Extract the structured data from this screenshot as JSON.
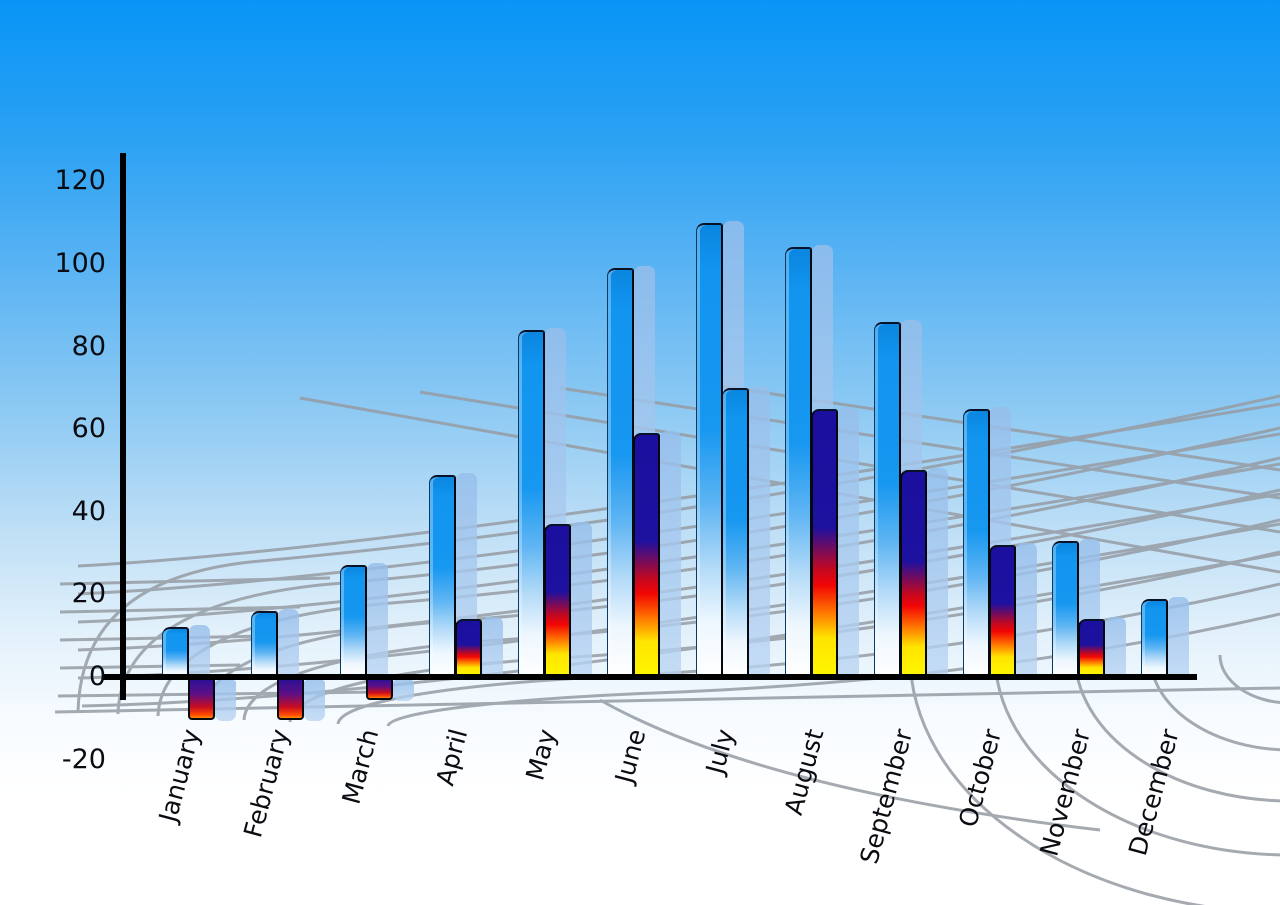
{
  "chart_data": {
    "type": "bar",
    "title": "",
    "subtitle": "",
    "legend": "none",
    "grid": "perspective-curved-decorative",
    "categories": [
      "January",
      "February",
      "March",
      "April",
      "May",
      "June",
      "July",
      "August",
      "September",
      "October",
      "November",
      "December"
    ],
    "series": [
      {
        "name": "series-1-blue",
        "values": [
          12,
          16,
          27,
          49,
          84,
          99,
          110,
          104,
          86,
          65,
          33,
          19
        ]
      },
      {
        "name": "series-2-rainbow",
        "values": [
          -10,
          -10,
          -5,
          14,
          37,
          59,
          70,
          65,
          50,
          32,
          14,
          null
        ],
        "styles": [
          "rainbow",
          "rainbow",
          "rainbow",
          "rainbow",
          "rainbow",
          "rainbow",
          "blue",
          "rainbow",
          "rainbow",
          "rainbow",
          "rainbow",
          "none"
        ]
      }
    ],
    "y_axis": {
      "ticks": [
        120,
        100,
        80,
        60,
        40,
        20,
        0,
        -20
      ],
      "min": -20,
      "max": 120,
      "label": ""
    },
    "x_axis": {
      "label": "",
      "tick_rotation_deg": -75
    },
    "colors": {
      "sky_top": "#0895f7",
      "sky_bottom": "#ffffff",
      "bar_blue_top": "#1095ef",
      "bar_blue_bottom": "#ffffff",
      "bar_shadow": "#a9c9ef",
      "rainbow_top": "#1d11a0",
      "rainbow_mid": "#f20505",
      "rainbow_bottom": "#fff600",
      "axis": "#000000",
      "grid_line": "#969ca4",
      "label_text": "#0b0b12"
    }
  }
}
